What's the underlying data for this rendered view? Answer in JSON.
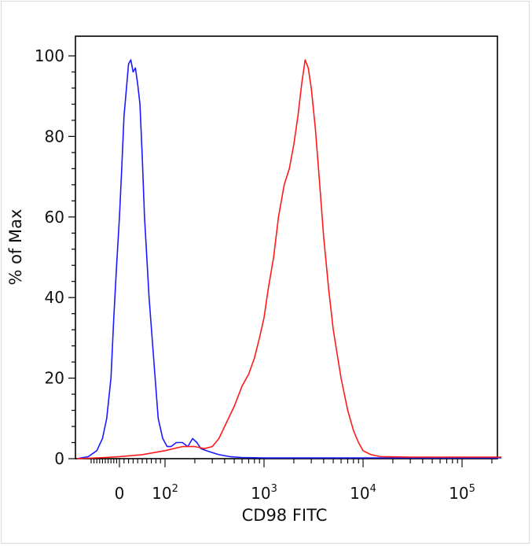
{
  "chart_data": {
    "type": "line",
    "title": "",
    "xlabel": "CD98 FITC",
    "ylabel": "% of Max",
    "x_scale": "logicle",
    "ylim": [
      0,
      100
    ],
    "yticks": [
      0,
      20,
      40,
      60,
      80,
      100
    ],
    "xticks": [
      {
        "base": "0",
        "exp": ""
      },
      {
        "base": "10",
        "exp": "2"
      },
      {
        "base": "10",
        "exp": "3"
      },
      {
        "base": "10",
        "exp": "4"
      },
      {
        "base": "10",
        "exp": "5"
      }
    ],
    "grid": false,
    "series": [
      {
        "color": "#1a1aff",
        "x": [
          -150,
          -110,
          -80,
          -60,
          -45,
          -30,
          -20,
          -10,
          0,
          5,
          10,
          20,
          25,
          30,
          35,
          40,
          45,
          50,
          55,
          65,
          75,
          85,
          95,
          105,
          115,
          130,
          150,
          170,
          190,
          210,
          230,
          260,
          300,
          350,
          450,
          600,
          1000,
          3000,
          10000,
          100000,
          250000
        ],
        "y": [
          0,
          0.5,
          2,
          5,
          10,
          20,
          35,
          48,
          60,
          72,
          85,
          98,
          99,
          96,
          97,
          93,
          88,
          75,
          60,
          40,
          25,
          10,
          5,
          3,
          3,
          4,
          4,
          3,
          5,
          4,
          2.5,
          2,
          1.5,
          1,
          0.5,
          0.3,
          0.2,
          0.2,
          0.2,
          0.2,
          0.2
        ]
      },
      {
        "color": "#ff1a1a",
        "x": [
          -150,
          -50,
          0,
          50,
          100,
          150,
          200,
          250,
          300,
          350,
          400,
          500,
          600,
          700,
          800,
          900,
          1000,
          1100,
          1250,
          1400,
          1600,
          1800,
          2000,
          2200,
          2400,
          2600,
          2800,
          3000,
          3300,
          3600,
          4000,
          4500,
          5000,
          6000,
          7000,
          8000,
          9000,
          10000,
          12000,
          15000,
          30000,
          100000,
          250000
        ],
        "y": [
          0,
          0.3,
          0.5,
          1,
          2,
          3,
          3,
          2.5,
          3,
          5,
          8,
          13,
          18,
          21,
          25,
          30,
          35,
          42,
          50,
          60,
          68,
          72,
          78,
          85,
          93,
          99,
          97,
          92,
          82,
          70,
          55,
          42,
          32,
          20,
          12,
          7,
          4,
          2,
          1,
          0.5,
          0.4,
          0.4,
          0.4
        ]
      }
    ]
  }
}
